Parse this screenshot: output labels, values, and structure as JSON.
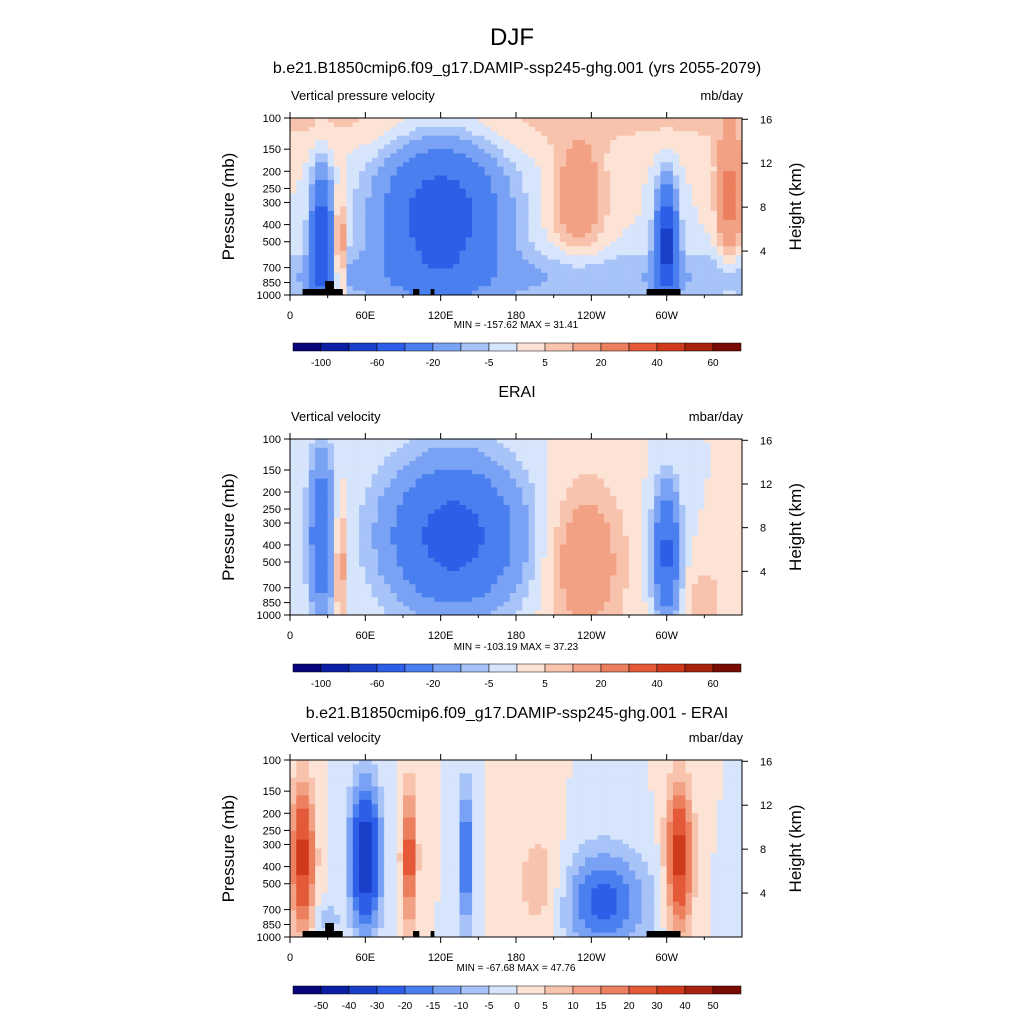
{
  "figure": {
    "title": "DJF"
  },
  "chart_data": [
    {
      "type": "heatmap",
      "title": "b.e21.B1850cmip6.f09_g17.DAMIP-ssp245-ghg.001 (yrs 2055-2079)",
      "left_subtitle": "Vertical pressure velocity",
      "right_subtitle": "mb/day",
      "ylabel": "Pressure (mb)",
      "y2label": "Height (km)",
      "stats": "MIN = -157.62  MAX =  31.41",
      "x_ticks": [
        "0",
        "60E",
        "120E",
        "180",
        "120W",
        "60W"
      ],
      "y_ticks": [
        "100",
        "150",
        "200",
        "250",
        "300",
        "400",
        "500",
        "700",
        "850",
        "1000"
      ],
      "y2_ticks": [
        "16",
        "12",
        "8",
        "4"
      ],
      "colorbar": {
        "levels": [
          "-120",
          "-100",
          "-80",
          "-60",
          "-40",
          "-20",
          "-10",
          "-5",
          "0",
          "5",
          "10",
          "20",
          "30",
          "40",
          "50",
          "60",
          "70"
        ],
        "labels": [
          "-100",
          "-60",
          "-20",
          "-5",
          "5",
          "20",
          "40",
          "60"
        ]
      }
    },
    {
      "type": "heatmap",
      "title": "ERAI",
      "left_subtitle": "Vertical velocity",
      "right_subtitle": "mbar/day",
      "ylabel": "Pressure (mb)",
      "y2label": "Height (km)",
      "stats": "MIN = -103.19  MAX =  37.23",
      "x_ticks": [
        "0",
        "60E",
        "120E",
        "180",
        "120W",
        "60W"
      ],
      "y_ticks": [
        "100",
        "150",
        "200",
        "250",
        "300",
        "400",
        "500",
        "700",
        "850",
        "1000"
      ],
      "y2_ticks": [
        "16",
        "12",
        "8",
        "4"
      ],
      "colorbar": {
        "levels": [
          "-120",
          "-100",
          "-80",
          "-60",
          "-40",
          "-20",
          "-10",
          "-5",
          "0",
          "5",
          "10",
          "20",
          "30",
          "40",
          "50",
          "60",
          "70"
        ],
        "labels": [
          "-100",
          "-60",
          "-20",
          "-5",
          "5",
          "20",
          "40",
          "60"
        ]
      }
    },
    {
      "type": "heatmap",
      "title": "b.e21.B1850cmip6.f09_g17.DAMIP-ssp245-ghg.001 - ERAI",
      "left_subtitle": "Vertical velocity",
      "right_subtitle": "mbar/day",
      "ylabel": "Pressure (mb)",
      "y2label": "Height (km)",
      "stats": "MIN = -67.68  MAX =  47.76",
      "x_ticks": [
        "0",
        "60E",
        "120E",
        "180",
        "120W",
        "60W"
      ],
      "y_ticks": [
        "100",
        "150",
        "200",
        "250",
        "300",
        "400",
        "500",
        "700",
        "850",
        "1000"
      ],
      "y2_ticks": [
        "16",
        "12",
        "8",
        "4"
      ],
      "colorbar": {
        "levels": [
          "-60",
          "-50",
          "-40",
          "-30",
          "-20",
          "-15",
          "-10",
          "-5",
          "0",
          "5",
          "10",
          "15",
          "20",
          "30",
          "40",
          "50",
          "60"
        ],
        "labels": [
          "-50",
          "-40",
          "-30",
          "-20",
          "-15",
          "-10",
          "-5",
          "0",
          "5",
          "10",
          "15",
          "20",
          "30",
          "40",
          "50"
        ]
      }
    }
  ],
  "colors": {
    "palette": [
      "#08057a",
      "#0a1fa3",
      "#1a3fc8",
      "#2d5ee8",
      "#4a7ff0",
      "#7aa2f4",
      "#a7c3f8",
      "#d6e5fb",
      "#fde3d6",
      "#f8c3ad",
      "#f2a184",
      "#ec7f5d",
      "#e45a39",
      "#cf3a1c",
      "#a8220c",
      "#780c03"
    ]
  }
}
